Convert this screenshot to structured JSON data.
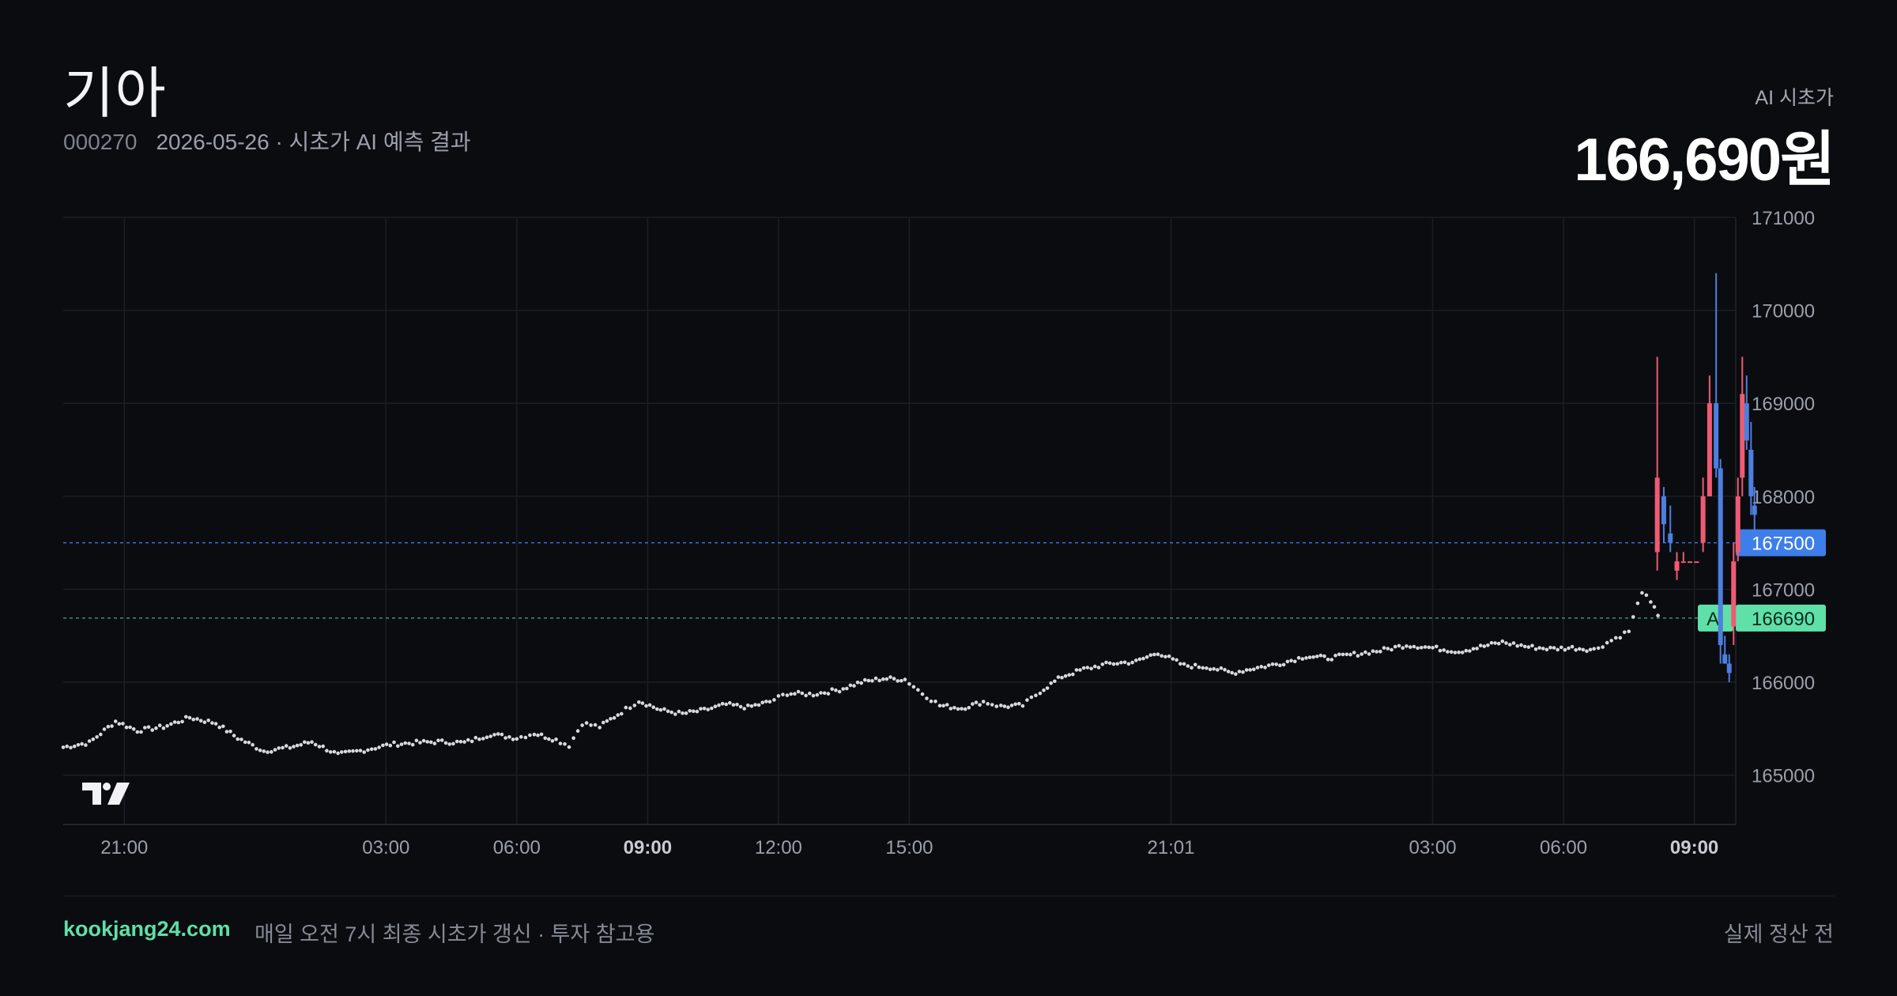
{
  "header": {
    "title": "기아",
    "code": "000270",
    "subtitle": "2026-05-26 · 시초가 AI 예측 결과",
    "pred_label": "AI 시초가",
    "pred_value": "166,690원"
  },
  "footer": {
    "site": "kookjang24.com",
    "note": "매일 오전 7시 최종 시초가 갱신 · 투자 참고용",
    "right": "실제 정산 전"
  },
  "colors": {
    "background": "#0b0c10",
    "grid": "#1b1e25",
    "dots": "#d9d9dc",
    "up": "#ef5b73",
    "down": "#4d7fe0",
    "ref_blue": "#3d7eea",
    "ai_green": "#5fe0a8"
  },
  "chart_data": {
    "type": "line",
    "x_ticks": [
      {
        "label": "21:00",
        "hour": 21,
        "bold": false
      },
      {
        "label": "03:00",
        "hour": 27,
        "bold": false
      },
      {
        "label": "06:00",
        "hour": 30,
        "bold": false
      },
      {
        "label": "09:00",
        "hour": 33,
        "bold": true
      },
      {
        "label": "12:00",
        "hour": 36,
        "bold": false
      },
      {
        "label": "15:00",
        "hour": 39,
        "bold": false
      },
      {
        "label": "21:01",
        "hour": 45,
        "bold": false
      },
      {
        "label": "03:00",
        "hour": 51,
        "bold": false
      },
      {
        "label": "06:00",
        "hour": 54,
        "bold": false
      },
      {
        "label": "09:00",
        "hour": 57,
        "bold": true
      }
    ],
    "y_ticks": [
      165000,
      166000,
      167000,
      168000,
      169000,
      170000,
      171000
    ],
    "ylim": [
      164470,
      171000
    ],
    "xlim": [
      19.6,
      57.95
    ],
    "premarket_series": {
      "name": "",
      "points": [
        [
          19.6,
          165300
        ],
        [
          20.2,
          165350
        ],
        [
          20.8,
          165580
        ],
        [
          21.3,
          165480
        ],
        [
          21.9,
          165520
        ],
        [
          22.5,
          165620
        ],
        [
          23.1,
          165560
        ],
        [
          23.6,
          165400
        ],
        [
          24.2,
          165260
        ],
        [
          24.8,
          165300
        ],
        [
          25.3,
          165360
        ],
        [
          25.9,
          165220
        ],
        [
          26.5,
          165270
        ],
        [
          27.1,
          165330
        ],
        [
          27.7,
          165350
        ],
        [
          28.2,
          165360
        ],
        [
          28.8,
          165350
        ],
        [
          29.4,
          165440
        ],
        [
          30.0,
          165400
        ],
        [
          30.4,
          165450
        ],
        [
          30.9,
          165380
        ],
        [
          31.2,
          165320
        ],
        [
          31.5,
          165560
        ],
        [
          31.9,
          165520
        ],
        [
          32.4,
          165680
        ],
        [
          32.8,
          165800
        ],
        [
          33.3,
          165700
        ],
        [
          33.8,
          165660
        ],
        [
          34.3,
          165700
        ],
        [
          34.8,
          165760
        ],
        [
          35.3,
          165730
        ],
        [
          35.8,
          165790
        ],
        [
          36.2,
          165880
        ],
        [
          36.8,
          165870
        ],
        [
          37.4,
          165920
        ],
        [
          37.9,
          166000
        ],
        [
          38.4,
          166040
        ],
        [
          38.9,
          166030
        ],
        [
          39.3,
          165880
        ],
        [
          39.7,
          165750
        ],
        [
          40.2,
          165720
        ],
        [
          40.7,
          165790
        ],
        [
          41.1,
          165740
        ],
        [
          41.6,
          165750
        ],
        [
          42.0,
          165900
        ],
        [
          42.5,
          166060
        ],
        [
          43.0,
          166140
        ],
        [
          43.6,
          166200
        ],
        [
          44.2,
          166220
        ],
        [
          44.7,
          166320
        ],
        [
          45.3,
          166180
        ],
        [
          45.9,
          166160
        ],
        [
          46.4,
          166100
        ],
        [
          46.9,
          166150
        ],
        [
          47.5,
          166200
        ],
        [
          48.1,
          166280
        ],
        [
          48.6,
          166260
        ],
        [
          49.2,
          166300
        ],
        [
          49.8,
          166340
        ],
        [
          50.4,
          166400
        ],
        [
          51.0,
          166370
        ],
        [
          51.6,
          166330
        ],
        [
          52.1,
          166380
        ],
        [
          52.6,
          166430
        ],
        [
          53.2,
          166380
        ],
        [
          53.7,
          166360
        ],
        [
          54.2,
          166370
        ],
        [
          54.7,
          166350
        ],
        [
          55.1,
          166450
        ],
        [
          55.5,
          166550
        ],
        [
          55.8,
          166980
        ],
        [
          56.0,
          166850
        ],
        [
          56.25,
          166670
        ]
      ]
    },
    "session_series": {
      "name": "",
      "candles": [
        [
          56.15,
          169500,
          167200,
          167400,
          168200
        ],
        [
          56.3,
          168100,
          167500,
          168000,
          167700
        ],
        [
          56.45,
          167900,
          167400,
          167600,
          167500
        ],
        [
          56.6,
          167400,
          167100,
          167200,
          167300
        ],
        [
          56.75,
          167400,
          167300,
          167300,
          167300
        ],
        [
          56.9,
          167300,
          167300,
          167300,
          167300
        ],
        [
          57.05,
          167300,
          167300,
          167300,
          167300
        ],
        [
          57.2,
          168200,
          167400,
          167500,
          168000
        ],
        [
          57.35,
          169300,
          168000,
          168000,
          169000
        ],
        [
          57.5,
          170400,
          168200,
          169000,
          168300
        ],
        [
          57.6,
          168400,
          166200,
          168300,
          166400
        ],
        [
          57.7,
          166500,
          166200,
          166300,
          166200
        ],
        [
          57.8,
          166300,
          166000,
          166200,
          166100
        ],
        [
          57.9,
          167500,
          166400,
          166600,
          167300
        ],
        [
          58.0,
          168200,
          167300,
          167400,
          168000
        ],
        [
          58.1,
          169500,
          168000,
          168200,
          169100
        ],
        [
          58.2,
          169300,
          168500,
          169000,
          168600
        ],
        [
          58.3,
          168800,
          167800,
          168500,
          168000
        ],
        [
          58.38,
          168100,
          167600,
          167900,
          167800
        ]
      ]
    },
    "reference_lines": [
      {
        "value": 167500,
        "label": "167500",
        "tag": ""
      },
      {
        "value": 166690,
        "label": "166690",
        "tag": "AI"
      }
    ]
  }
}
